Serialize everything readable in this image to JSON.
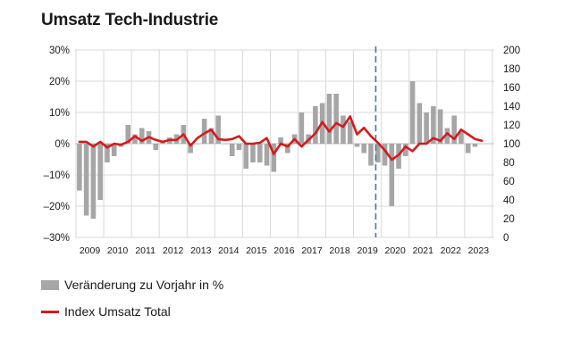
{
  "colors": {
    "bar": "#a6a6a6",
    "line": "#d7191c",
    "grid": "#d9d9d9",
    "marker": "#3b7d9e"
  },
  "chart_data": {
    "type": "bar+line",
    "title": "Umsatz Tech-Industrie",
    "x_labels": [
      "2009",
      "2010",
      "2011",
      "2012",
      "2013",
      "2014",
      "2015",
      "2016",
      "2017",
      "2018",
      "2019",
      "2020",
      "2021",
      "2022",
      "2023"
    ],
    "left_axis": {
      "min": -30,
      "max": 30,
      "ticks": [
        "–30%",
        "–20%",
        "–10%",
        "0%",
        "10%",
        "20%",
        "30%"
      ]
    },
    "right_axis": {
      "min": 0,
      "max": 200,
      "ticks": [
        "0",
        "20",
        "40",
        "60",
        "80",
        "100",
        "120",
        "140",
        "160",
        "180",
        "200"
      ]
    },
    "vertical_marker_after_x_index": 10.8,
    "series": [
      {
        "name": "Veränderung zu Vorjahr in %",
        "type": "bar",
        "axis": "left",
        "values": [
          -15,
          -23,
          -24,
          -18,
          -6,
          -4,
          -1,
          6,
          3,
          5,
          4,
          -2,
          1,
          2,
          3,
          6,
          -3,
          0,
          8,
          5,
          9,
          0,
          -4,
          -2,
          -8,
          -6,
          -6,
          -7,
          -9,
          2,
          -3,
          3,
          10,
          3,
          12,
          13,
          16,
          16,
          9,
          7,
          -1,
          -3,
          -7,
          -6,
          -7,
          -20,
          -8,
          -4,
          20,
          13,
          10,
          12,
          11,
          5,
          9,
          4,
          -3,
          -1
        ]
      },
      {
        "name": "Index Umsatz Total",
        "type": "line",
        "axis": "right",
        "values": [
          102,
          102,
          97,
          102,
          96,
          100,
          99,
          102,
          108,
          103,
          107,
          104,
          102,
          104,
          104,
          110,
          98,
          106,
          111,
          115,
          105,
          104,
          105,
          108,
          100,
          100,
          101,
          106,
          89,
          100,
          97,
          105,
          97,
          104,
          111,
          123,
          113,
          122,
          118,
          129,
          110,
          117,
          108,
          101,
          93,
          83,
          88,
          97,
          92,
          100,
          100,
          106,
          103,
          111,
          105,
          115,
          110,
          105,
          103
        ]
      }
    ]
  },
  "legend": [
    {
      "label": "Veränderung zu Vorjahr in %",
      "kind": "bar"
    },
    {
      "label": "Index Umsatz Total",
      "kind": "line"
    }
  ]
}
